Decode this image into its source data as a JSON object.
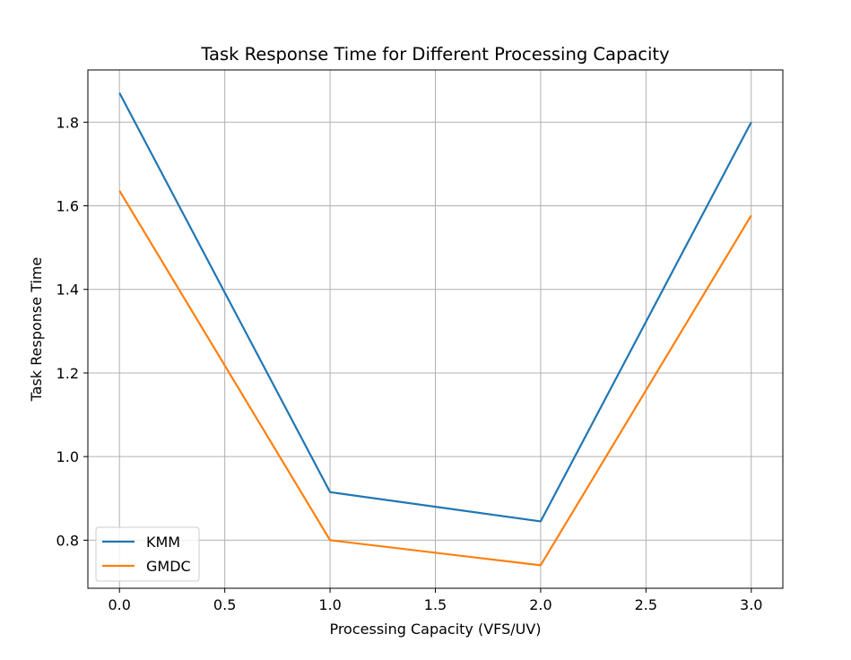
{
  "chart_data": {
    "type": "line",
    "title": "Task Response Time for Different Processing Capacity",
    "xlabel": "Processing Capacity  (VFS/UV)",
    "ylabel": "Task Response Time",
    "x": [
      0.0,
      1.0,
      2.0,
      3.0
    ],
    "series": [
      {
        "name": "KMM",
        "values": [
          1.87,
          0.915,
          0.845,
          1.8
        ],
        "color": "#1f77b4"
      },
      {
        "name": "GMDC",
        "values": [
          1.636,
          0.8,
          0.74,
          1.577
        ],
        "color": "#ff7f0e"
      }
    ],
    "xlim": [
      -0.15,
      3.15
    ],
    "ylim": [
      0.685,
      1.925
    ],
    "xticks": [
      "0.0",
      "0.5",
      "1.0",
      "1.5",
      "2.0",
      "2.5",
      "3.0"
    ],
    "yticks": [
      "0.8",
      "1.0",
      "1.2",
      "1.4",
      "1.6",
      "1.8"
    ],
    "grid": true,
    "legend_position": "lower-left"
  }
}
